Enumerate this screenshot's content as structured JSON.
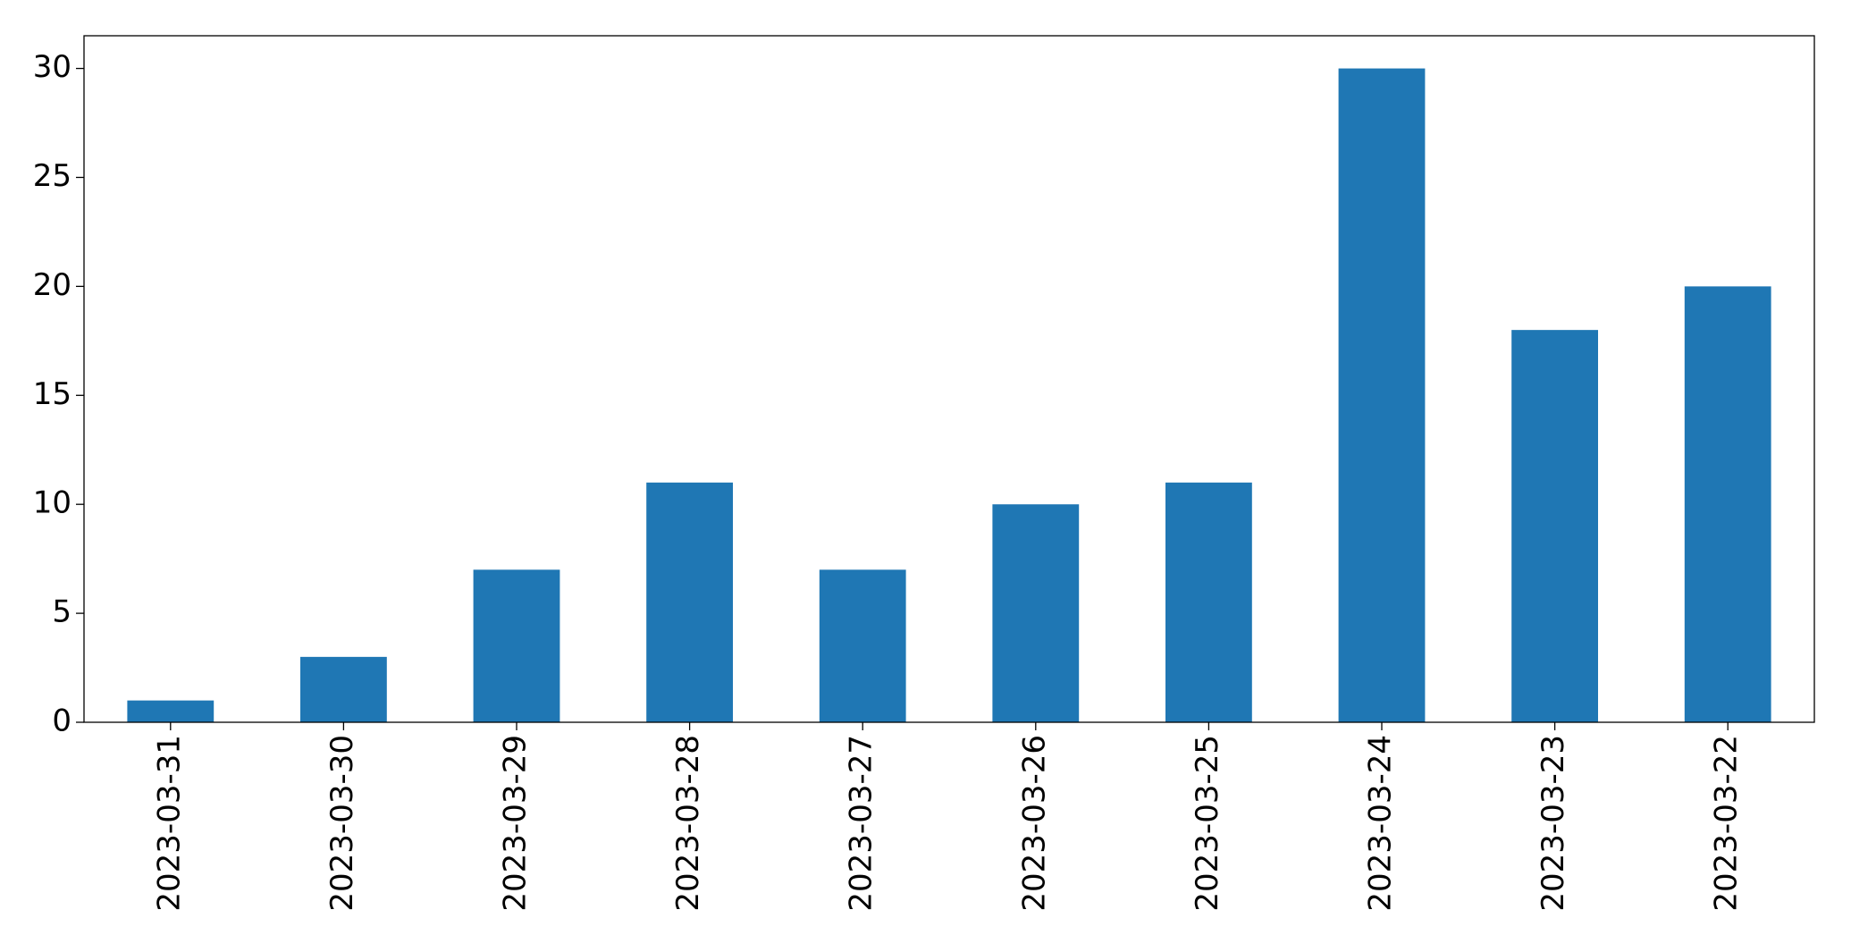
{
  "chart_data": {
    "type": "bar",
    "categories": [
      "2023-03-31",
      "2023-03-30",
      "2023-03-29",
      "2023-03-28",
      "2023-03-27",
      "2023-03-26",
      "2023-03-25",
      "2023-03-24",
      "2023-03-23",
      "2023-03-22"
    ],
    "values": [
      1,
      3,
      7,
      11,
      7,
      10,
      11,
      30,
      18,
      20
    ],
    "color": "#1f77b4",
    "ylim": [
      0,
      31.5
    ],
    "yticks": [
      0,
      5,
      10,
      15,
      20,
      25,
      30
    ],
    "grid": false
  }
}
